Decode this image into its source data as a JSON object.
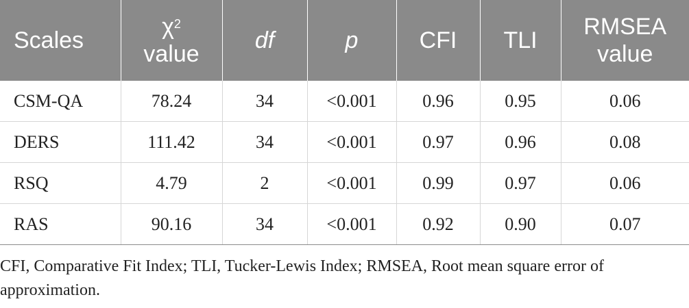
{
  "table": {
    "headers": {
      "scales": "Scales",
      "chi_symbol": "χ",
      "chi_sup": "2",
      "chi_value": "value",
      "df": "df",
      "p": "p",
      "cfi": "CFI",
      "tli": "TLI",
      "rmsea": "RMSEA",
      "rmsea_value": "value"
    },
    "rows": [
      [
        "CSM-QA",
        "78.24",
        "34",
        "<0.001",
        "0.96",
        "0.95",
        "0.06"
      ],
      [
        "DERS",
        "111.42",
        "34",
        "<0.001",
        "0.97",
        "0.96",
        "0.08"
      ],
      [
        "RSQ",
        "4.79",
        "2",
        "<0.001",
        "0.99",
        "0.97",
        "0.06"
      ],
      [
        "RAS",
        "90.16",
        "34",
        "<0.001",
        "0.92",
        "0.90",
        "0.07"
      ]
    ]
  },
  "footnote": "CFI, Comparative Fit Index; TLI, Tucker-Lewis Index; RMSEA, Root mean square error of approximation.",
  "colors": {
    "header_bg": "#8a8a8a",
    "header_text": "#ffffff",
    "grid_line": "#d6d6d6",
    "body_text": "#222222"
  }
}
